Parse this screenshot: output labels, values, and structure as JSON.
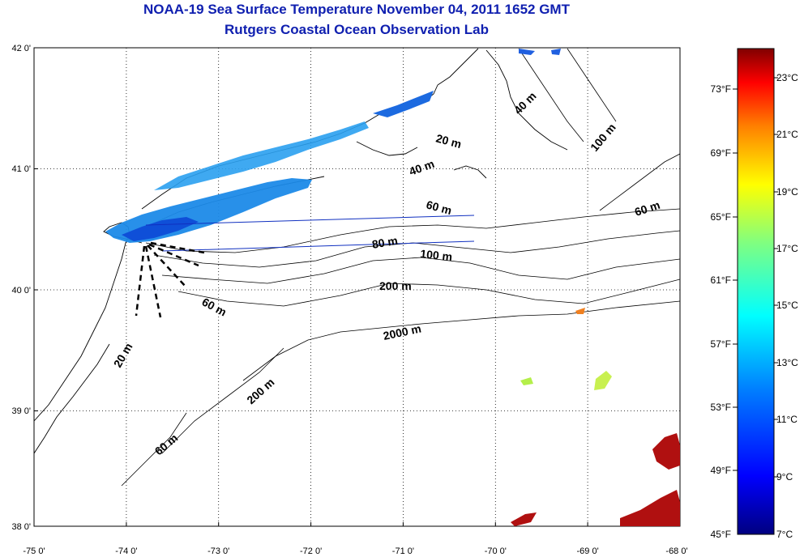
{
  "title": "NOAA-19 Sea Surface Temperature November 04, 2011 1652 GMT",
  "subtitle": "Rutgers Coastal Ocean Observation Lab",
  "map": {
    "lon_range": [
      -75,
      -68
    ],
    "lat_range": [
      38,
      42
    ],
    "lon_ticks": [
      "-75 0'",
      "-74 0'",
      "-73 0'",
      "-72 0'",
      "-71 0'",
      "-70 0'",
      "-69 0'",
      "-68 0'"
    ],
    "lat_ticks": [
      "42 0'",
      "41 0'",
      "40 0'",
      "39 0'",
      "38 0'"
    ],
    "grid": true,
    "grid_style": "dotted"
  },
  "contour_labels": [
    {
      "text": "40 m"
    },
    {
      "text": "100 m"
    },
    {
      "text": "20 m"
    },
    {
      "text": "40 m"
    },
    {
      "text": "60 m"
    },
    {
      "text": "60 m"
    },
    {
      "text": "80 m"
    },
    {
      "text": "100 m"
    },
    {
      "text": "200 m"
    },
    {
      "text": "60 m"
    },
    {
      "text": "2000 m"
    },
    {
      "text": "20 m"
    },
    {
      "text": "200 m"
    },
    {
      "text": "60 m"
    }
  ],
  "colorbar": {
    "fahrenheit_labels": [
      "73°F",
      "69°F",
      "65°F",
      "61°F",
      "57°F",
      "53°F",
      "49°F",
      "45°F"
    ],
    "celsius_labels": [
      "23°C",
      "21°C",
      "19°C",
      "17°C",
      "15°C",
      "13°C",
      "11°C",
      "9°C",
      "7°C"
    ],
    "colors": [
      "#000080",
      "#0000ff",
      "#0080ff",
      "#00ffff",
      "#80ff80",
      "#ffff00",
      "#ff8000",
      "#ff0000",
      "#800000"
    ]
  },
  "colors": {
    "title": "#1020b0",
    "transect": "#1030c0"
  }
}
